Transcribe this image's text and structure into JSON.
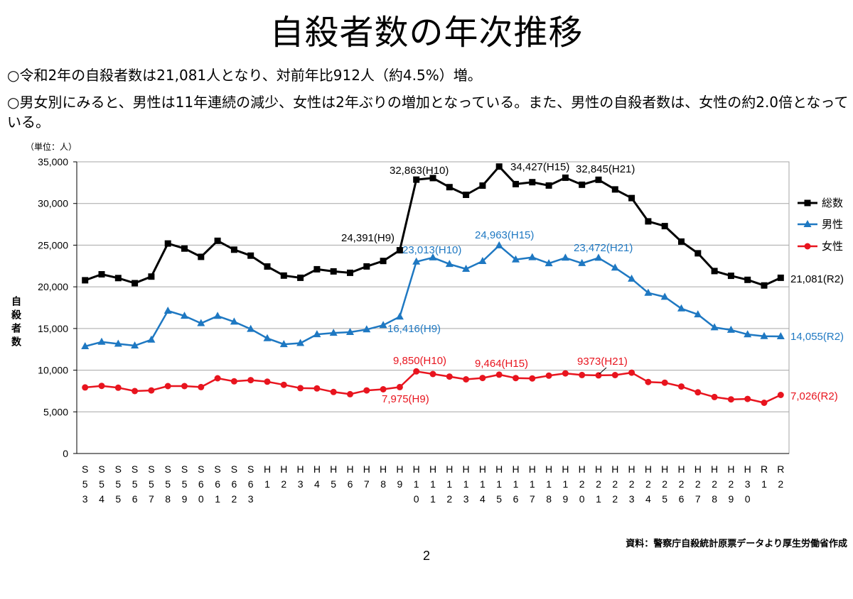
{
  "title": "自殺者数の年次推移",
  "bullets": [
    "○令和2年の自殺者数は21,081人となり、対前年比912人（約4.5%）増。",
    "○男女別にみると、男性は11年連続の減少、女性は2年ぶりの増加となっている。また、男性の自殺者数は、女性の約2.0倍となっている。"
  ],
  "source": "資料：警察庁自殺統計原票データより厚生労働省作成",
  "page_number": "2",
  "chart_data": {
    "type": "line",
    "unit_label": "（単位：人）",
    "ylabel": "自殺者数",
    "ylim": [
      0,
      35000
    ],
    "yticks": [
      {
        "value": 0,
        "label": "0"
      },
      {
        "value": 5000,
        "label": "5,000"
      },
      {
        "value": 10000,
        "label": "10,000"
      },
      {
        "value": 15000,
        "label": "15,000"
      },
      {
        "value": 20000,
        "label": "20,000"
      },
      {
        "value": 25000,
        "label": "25,000"
      },
      {
        "value": 30000,
        "label": "30,000"
      },
      {
        "value": 35000,
        "label": "35,000"
      }
    ],
    "grid": true,
    "legend": "right",
    "categories": [
      "S53",
      "S54",
      "S55",
      "S56",
      "S57",
      "S58",
      "S59",
      "S60",
      "S61",
      "S62",
      "S63",
      "H1",
      "H2",
      "H3",
      "H4",
      "H5",
      "H6",
      "H7",
      "H8",
      "H9",
      "H10",
      "H11",
      "H12",
      "H13",
      "H14",
      "H15",
      "H16",
      "H17",
      "H18",
      "H19",
      "H20",
      "H21",
      "H22",
      "H23",
      "H24",
      "H25",
      "H26",
      "H27",
      "H28",
      "H29",
      "H30",
      "R1",
      "R2"
    ],
    "series": [
      {
        "name": "総数",
        "color": "#000000",
        "marker": "square",
        "values": [
          20788,
          21503,
          21048,
          20434,
          21228,
          25202,
          24596,
          23599,
          25524,
          24460,
          23742,
          22436,
          21346,
          21084,
          22104,
          21851,
          21679,
          22445,
          23104,
          24391,
          32863,
          33048,
          31957,
          31042,
          32143,
          34427,
          32325,
          32552,
          32155,
          33093,
          32249,
          32845,
          31690,
          30651,
          27858,
          27283,
          25427,
          24025,
          21897,
          21321,
          20840,
          20169,
          21081
        ]
      },
      {
        "name": "男性",
        "color": "#1e78c2",
        "marker": "triangle",
        "values": [
          12859,
          13386,
          13155,
          12942,
          13654,
          17116,
          16508,
          15624,
          16497,
          15802,
          14934,
          13818,
          13102,
          13242,
          14296,
          14468,
          14560,
          14874,
          15393,
          16416,
          23013,
          23512,
          22727,
          22144,
          23080,
          24963,
          23272,
          23540,
          22813,
          23478,
          22831,
          23472,
          22283,
          20955,
          19273,
          18787,
          17386,
          16681,
          15121,
          14826,
          14290,
          14078,
          14055
        ]
      },
      {
        "name": "女性",
        "color": "#e8141e",
        "marker": "circle",
        "values": [
          7929,
          8117,
          7893,
          7492,
          7574,
          8086,
          8088,
          7975,
          9027,
          8658,
          8808,
          8618,
          8244,
          7842,
          7808,
          7383,
          7119,
          7571,
          7711,
          7975,
          9850,
          9536,
          9230,
          8898,
          9063,
          9464,
          9053,
          9012,
          9342,
          9615,
          9418,
          9373,
          9407,
          9696,
          8585,
          8496,
          8041,
          7344,
          6776,
          6495,
          6550,
          6091,
          7026
        ]
      }
    ],
    "annotations": [
      {
        "series": "総数",
        "category": "H10",
        "text": "32,863(H10)"
      },
      {
        "series": "総数",
        "category": "H15",
        "text": "34,427(H15)"
      },
      {
        "series": "総数",
        "category": "H21",
        "text": "32,845(H21)"
      },
      {
        "series": "総数",
        "category": "H9",
        "text": "24,391(H9)"
      },
      {
        "series": "総数",
        "category": "R2",
        "text": "21,081(R2)"
      },
      {
        "series": "男性",
        "category": "H10",
        "text": "23,013(H10)"
      },
      {
        "series": "男性",
        "category": "H15",
        "text": "24,963(H15)"
      },
      {
        "series": "男性",
        "category": "H21",
        "text": "23,472(H21)"
      },
      {
        "series": "男性",
        "category": "H9",
        "text": "16,416(H9)"
      },
      {
        "series": "男性",
        "category": "R2",
        "text": "14,055(R2)"
      },
      {
        "series": "女性",
        "category": "H10",
        "text": "9,850(H10)"
      },
      {
        "series": "女性",
        "category": "H15",
        "text": "9,464(H15)"
      },
      {
        "series": "女性",
        "category": "H21",
        "text": "9373(H21)"
      },
      {
        "series": "女性",
        "category": "H9",
        "text": "7,975(H9)"
      },
      {
        "series": "女性",
        "category": "R2",
        "text": "7,026(R2)"
      }
    ]
  }
}
